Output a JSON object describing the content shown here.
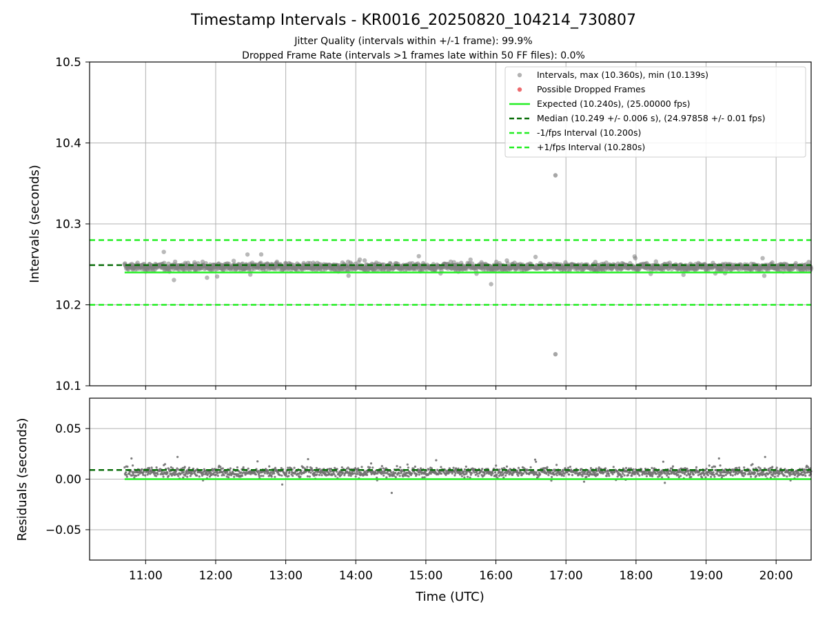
{
  "title": "Timestamp Intervals - KR0016_20250820_104214_730807",
  "subtitle_lines": [
    "Jitter Quality (intervals within +/-1 frame): 99.9%",
    "Dropped Frame Rate (intervals >1 frames late within 50 FF files): 0.0%"
  ],
  "colors": {
    "points": "#808080",
    "dropped": "#e8454a",
    "expected": "#22ee22",
    "median": "#0a6e0a",
    "fps_bounds": "#22ee22"
  },
  "chart_data": [
    {
      "type": "scatter",
      "panel": "intervals",
      "xlabel": "",
      "ylabel": "Intervals (seconds)",
      "ylim": [
        10.1,
        10.5
      ],
      "yticks": [
        "10.1",
        "10.2",
        "10.3",
        "10.4",
        "10.5"
      ],
      "xlim_hours": [
        10.2,
        20.5
      ],
      "grid": true,
      "legend_position": "upper right",
      "legend": [
        "Intervals, max (10.360s), min (10.139s)",
        "Possible Dropped Frames",
        "Expected (10.240s), (25.00000 fps)",
        "Median (10.249 +/- 0.006 s), (24.97858 +/- 0.01 fps)",
        "-1/fps Interval (10.200s)",
        "+1/fps Interval (10.280s)"
      ],
      "series": [
        {
          "name": "Intervals",
          "style": "points",
          "x_range": [
            "10:42",
            "20:30"
          ],
          "center": 10.247,
          "spread": 0.006,
          "outliers": [
            {
              "x": "16:51",
              "y": 10.36
            },
            {
              "x": "16:51",
              "y": 10.139
            }
          ]
        },
        {
          "name": "Possible Dropped Frames",
          "style": "points",
          "values": []
        }
      ],
      "hlines": [
        {
          "name": "Expected",
          "y": 10.24,
          "style": "solid",
          "x_start": "10:42"
        },
        {
          "name": "Median",
          "y": 10.249,
          "style": "dashed"
        },
        {
          "name": "-1/fps Interval",
          "y": 10.2,
          "style": "dashed"
        },
        {
          "name": "+1/fps Interval",
          "y": 10.28,
          "style": "dashed"
        }
      ]
    },
    {
      "type": "scatter",
      "panel": "residuals",
      "xlabel": "Time (UTC)",
      "ylabel": "Residuals (seconds)",
      "ylim": [
        -0.08,
        0.08
      ],
      "yticks": [
        "−0.05",
        "0.00",
        "0.05"
      ],
      "ytick_values": [
        -0.05,
        0.0,
        0.05
      ],
      "xlim_hours": [
        10.2,
        20.5
      ],
      "xticks": [
        "11:00",
        "12:00",
        "13:00",
        "14:00",
        "15:00",
        "16:00",
        "17:00",
        "18:00",
        "19:00",
        "20:00"
      ],
      "grid": true,
      "series": [
        {
          "name": "Residuals",
          "style": "points",
          "x_range": [
            "10:42",
            "20:30"
          ],
          "center": 0.007,
          "spread": 0.006
        }
      ],
      "hlines": [
        {
          "name": "Expected",
          "y": 0.0,
          "style": "solid",
          "x_start": "10:42"
        },
        {
          "name": "Median",
          "y": 0.009,
          "style": "dashed"
        }
      ]
    }
  ]
}
